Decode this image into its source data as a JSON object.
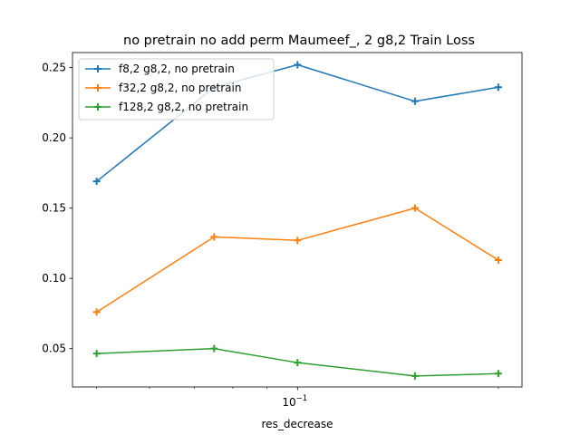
{
  "chart_data": {
    "type": "line",
    "title": "no pretrain no add perm Maumeef_, 2 g8,2 Train Loss",
    "xlabel": "res_decrease",
    "ylabel": "",
    "xscale": "log",
    "x": [
      0.05,
      0.075,
      0.1,
      0.15,
      0.2
    ],
    "xlim": [
      0.046,
      0.217
    ],
    "ylim": [
      0.0227,
      0.2607
    ],
    "yticks": [
      0.05,
      0.1,
      0.15,
      0.2,
      0.25
    ],
    "ytick_labels": [
      "0.05",
      "0.10",
      "0.15",
      "0.20",
      "0.25"
    ],
    "xtick_major": [
      0.1
    ],
    "xtick_major_labels": [
      {
        "base": "10",
        "exp": "−1"
      }
    ],
    "xtick_minor": [
      0.05,
      0.06,
      0.07,
      0.08,
      0.09,
      0.2
    ],
    "grid": false,
    "legend_loc": "upper left",
    "series": [
      {
        "name": "f8,2 g8,2, no pretrain",
        "color": "#1f77b4",
        "values": [
          0.169,
          0.236,
          0.252,
          0.226,
          0.236
        ]
      },
      {
        "name": "f32,2 g8,2, no pretrain",
        "color": "#ff7f0e",
        "values": [
          0.076,
          0.1295,
          0.127,
          0.15,
          0.113
        ]
      },
      {
        "name": "f128,2 g8,2, no pretrain",
        "color": "#2ca02c",
        "values": [
          0.0465,
          0.05,
          0.04,
          0.0305,
          0.0322
        ]
      }
    ]
  }
}
